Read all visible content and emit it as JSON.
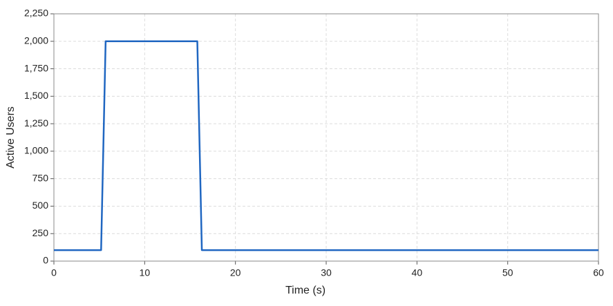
{
  "chart_data": {
    "type": "line",
    "x_label": "Time (s)",
    "y_label": "Active Users",
    "x": [
      0,
      5.2,
      5.7,
      15.8,
      16.3,
      60
    ],
    "series": [
      {
        "color": "#1f66c1",
        "values": [
          100,
          100,
          2000,
          2000,
          100,
          100
        ]
      }
    ],
    "xlim": [
      0,
      60
    ],
    "xticks": [
      0,
      10,
      20,
      30,
      40,
      50,
      60
    ],
    "ylim": [
      0,
      2250
    ],
    "yticks": [
      0,
      250,
      500,
      750,
      {
        "value": 1000,
        "label": "1,000"
      },
      {
        "value": 1250,
        "label": "1,250"
      },
      {
        "value": 1500,
        "label": "1,500"
      },
      {
        "value": 1750,
        "label": "1,750"
      },
      {
        "value": 2000,
        "label": "2,000"
      },
      {
        "value": 2250,
        "label": "2,250"
      }
    ],
    "grid": true
  }
}
